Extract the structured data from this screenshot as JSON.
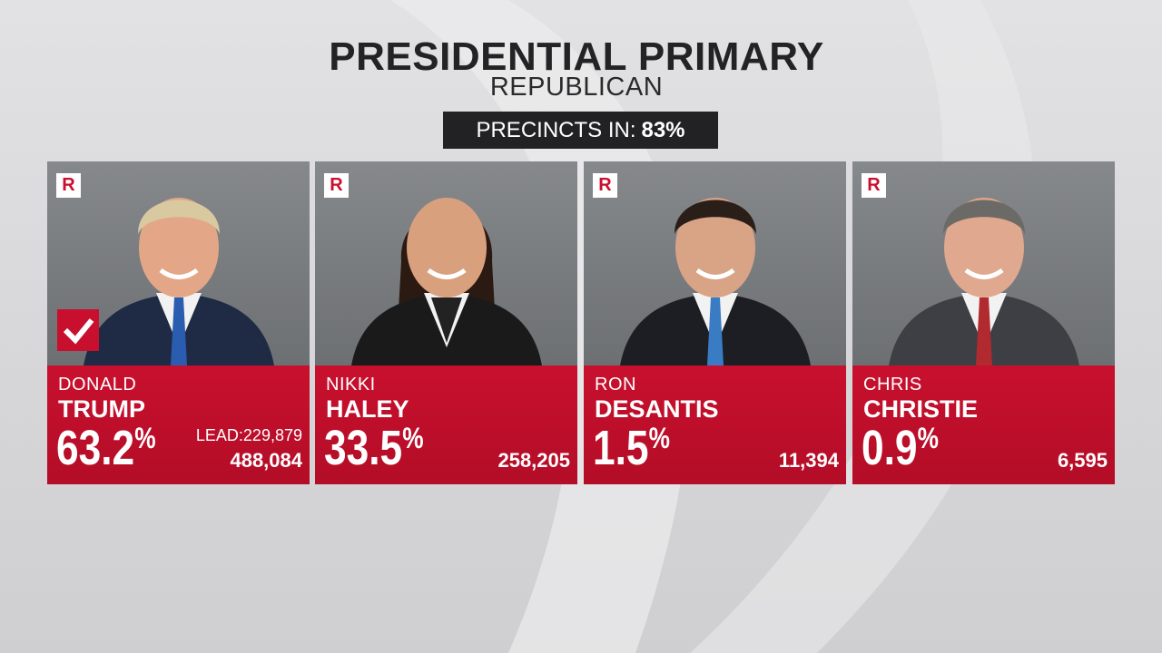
{
  "header": {
    "title": "PRESIDENTIAL PRIMARY",
    "subtitle": "REPUBLICAN",
    "precincts_label": "PRECINCTS IN:",
    "precincts_value": "83%"
  },
  "candidates": [
    {
      "party": "R",
      "first": "DONALD",
      "last": "TRUMP",
      "percent": "63.2",
      "percent_sign": "%",
      "lead_label": "LEAD:",
      "lead": "229,879",
      "votes": "488,084",
      "winner": true,
      "suit": "#1f2a44",
      "tie": "#2a5db0",
      "hair": "#d9c9a0",
      "skin": "#e3a788"
    },
    {
      "party": "R",
      "first": "NIKKI",
      "last": "HALEY",
      "percent": "33.5",
      "percent_sign": "%",
      "votes": "258,205",
      "winner": false,
      "suit": "#1a1a1a",
      "tie": null,
      "hair": "#2b1a12",
      "skin": "#d9a07e"
    },
    {
      "party": "R",
      "first": "RON",
      "last": "DESANTIS",
      "percent": "1.5",
      "percent_sign": "%",
      "votes": "11,394",
      "winner": false,
      "suit": "#1c1e24",
      "tie": "#3a7cc4",
      "hair": "#2a1f18",
      "skin": "#d9a386"
    },
    {
      "party": "R",
      "first": "CHRIS",
      "last": "CHRISTIE",
      "percent": "0.9",
      "percent_sign": "%",
      "votes": "6,595",
      "winner": false,
      "suit": "#3d3f44",
      "tie": "#b02a30",
      "hair": "#6c6a66",
      "skin": "#e0a88e"
    }
  ]
}
